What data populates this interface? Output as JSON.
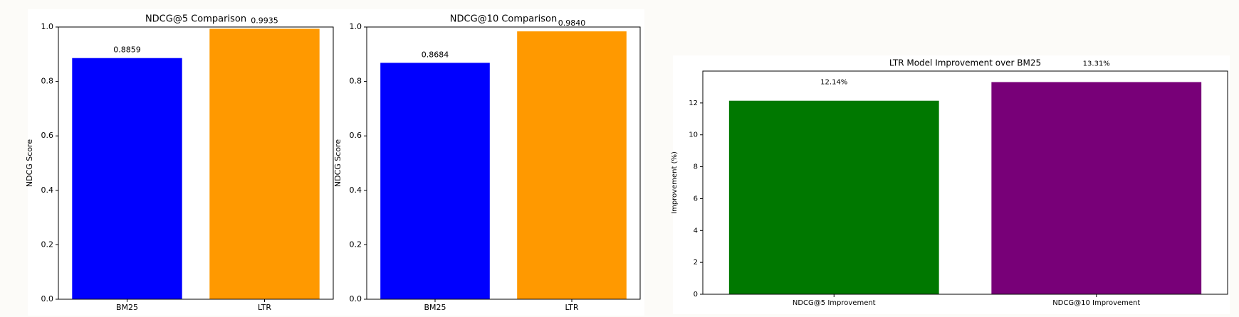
{
  "chart_data": [
    {
      "type": "bar",
      "title": "NDCG@5 Comparison",
      "ylabel": "NDCG Score",
      "categories": [
        "BM25",
        "LTR"
      ],
      "values": [
        0.8859,
        0.9935
      ],
      "value_labels": [
        "0.8859",
        "0.9935"
      ],
      "colors": [
        "#0000ff",
        "#ff9900"
      ],
      "ylim": [
        0,
        1
      ],
      "yticks": [
        {
          "value": 0,
          "label": "0.0"
        },
        {
          "value": 0.2,
          "label": "0.2"
        },
        {
          "value": 0.4,
          "label": "0.4"
        },
        {
          "value": 0.6,
          "label": "0.6"
        },
        {
          "value": 0.8,
          "label": "0.8"
        },
        {
          "value": 1,
          "label": "1.0"
        }
      ]
    },
    {
      "type": "bar",
      "title": "NDCG@10 Comparison",
      "ylabel": "NDCG Score",
      "categories": [
        "BM25",
        "LTR"
      ],
      "values": [
        0.8684,
        0.984
      ],
      "value_labels": [
        "0.8684",
        "0.9840"
      ],
      "colors": [
        "#0000ff",
        "#ff9900"
      ],
      "ylim": [
        0,
        1
      ],
      "yticks": [
        {
          "value": 0,
          "label": "0.0"
        },
        {
          "value": 0.2,
          "label": "0.2"
        },
        {
          "value": 0.4,
          "label": "0.4"
        },
        {
          "value": 0.6,
          "label": "0.6"
        },
        {
          "value": 0.8,
          "label": "0.8"
        },
        {
          "value": 1,
          "label": "1.0"
        }
      ]
    },
    {
      "type": "bar",
      "title": "LTR Model Improvement over BM25",
      "ylabel": "Improvement (%)",
      "categories": [
        "NDCG@5 Improvement",
        "NDCG@10 Improvement"
      ],
      "values": [
        12.14,
        13.31
      ],
      "value_labels": [
        "12.14%",
        "13.31%"
      ],
      "colors": [
        "#007800",
        "#780078"
      ],
      "ylim": [
        0,
        14
      ],
      "yticks": [
        0,
        2,
        4,
        6,
        8,
        10,
        12
      ],
      "hline": 0,
      "hline_color": "#b03030"
    }
  ]
}
